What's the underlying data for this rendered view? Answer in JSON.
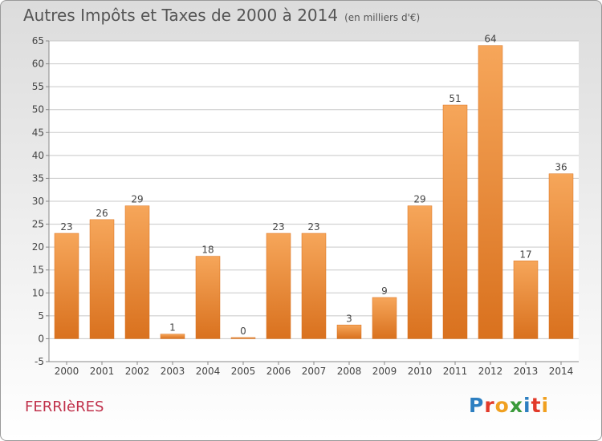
{
  "title": "Autres Impôts et Taxes de 2000 à 2014",
  "subtitle": "(en milliers d'€)",
  "commune": "FERRIèRES",
  "logo": {
    "text": "Proxiti",
    "letter_colors": [
      "#2d7fc1",
      "#e23a2a",
      "#f0a020",
      "#3a9a3a",
      "#2d7fc1",
      "#e23a2a",
      "#f0a020"
    ]
  },
  "colors": {
    "bar_light": "#f6a65a",
    "bar_dark": "#d9711e",
    "grid": "#c8c8c8",
    "axis_text": "#444444",
    "commune_text": "#c0304a"
  },
  "chart_data": {
    "type": "bar",
    "categories": [
      "2000",
      "2001",
      "2002",
      "2003",
      "2004",
      "2005",
      "2006",
      "2007",
      "2008",
      "2009",
      "2010",
      "2011",
      "2012",
      "2013",
      "2014"
    ],
    "values": [
      23,
      26,
      29,
      1,
      18,
      0,
      23,
      23,
      3,
      9,
      29,
      51,
      64,
      17,
      36
    ],
    "ylim": [
      -5,
      65
    ],
    "yticks": [
      -5,
      0,
      5,
      10,
      15,
      20,
      25,
      30,
      35,
      40,
      45,
      50,
      55,
      60,
      65
    ],
    "grid": true
  }
}
